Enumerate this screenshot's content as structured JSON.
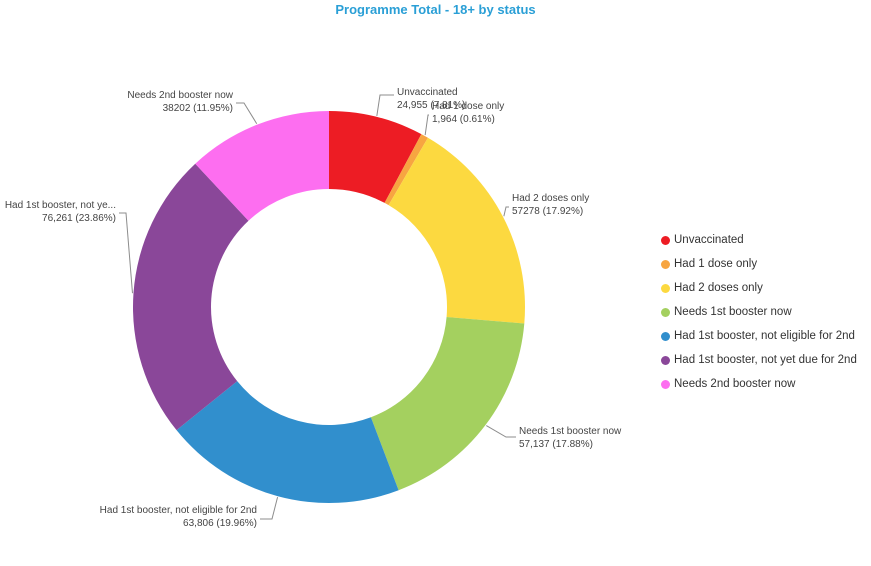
{
  "chart_data": {
    "type": "pie",
    "title": "Programme Total - 18+ by status",
    "legend_position": "right",
    "categories": [
      "Unvaccinated",
      "Had 1 dose only",
      "Had 2 doses only",
      "Needs 1st booster now",
      "Had 1st booster, not eligible for 2nd",
      "Had 1st booster, not yet due for 2nd",
      "Needs 2nd booster now"
    ],
    "values": [
      24955,
      1964,
      57278,
      57137,
      63806,
      76261,
      38202
    ],
    "colors": [
      "#ed1c24",
      "#f7a541",
      "#fcd940",
      "#a4d05f",
      "#318fcd",
      "#8a4799",
      "#fd6ef0"
    ],
    "labels": [
      {
        "name": "Unvaccinated",
        "value": "24,955 (7.81%)"
      },
      {
        "name": "Had 1 dose only",
        "value": "1,964 (0.61%)"
      },
      {
        "name": "Had 2 doses only",
        "value": "57278 (17.92%)"
      },
      {
        "name": "Needs 1st booster now",
        "value": "57,137 (17.88%)"
      },
      {
        "name": "Had 1st booster, not eligible for 2nd",
        "value": "63,806 (19.96%)"
      },
      {
        "name": "Had 1st booster, not ye...",
        "value": "76,261 (23.86%)"
      },
      {
        "name": "Needs 2nd booster now",
        "value": "38202 (11.95%)"
      }
    ]
  }
}
